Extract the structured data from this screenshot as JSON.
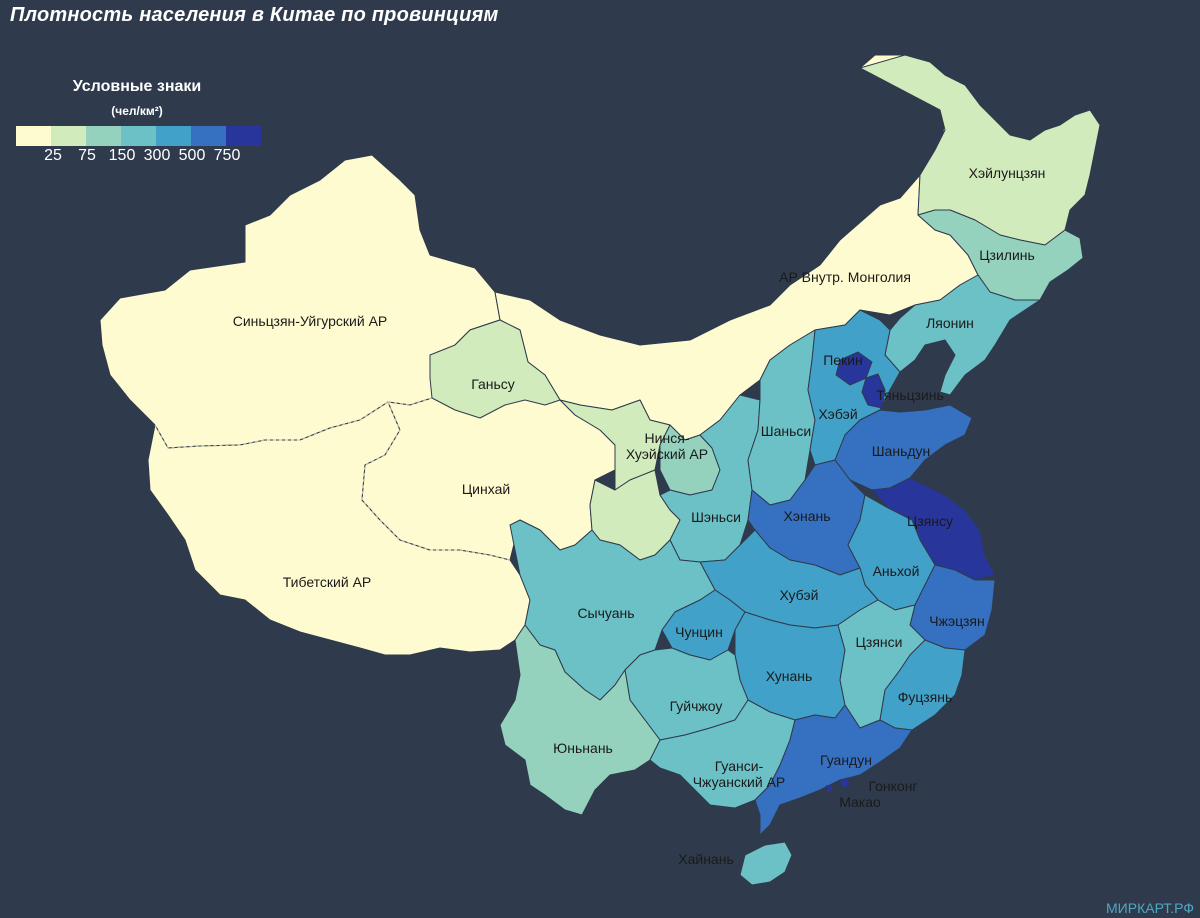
{
  "title": "Плотность населения в Китае по провинциям",
  "watermark": "МИРКАРТ.РФ",
  "legend": {
    "title": "Условные знаки",
    "unit": "(чел/км²)",
    "ticks": [
      "25",
      "75",
      "150",
      "300",
      "500",
      "750"
    ],
    "colors": [
      "#fffbd0",
      "#d2ebbc",
      "#95d2be",
      "#6cc1c7",
      "#42a1c8",
      "#3670c0",
      "#28359a"
    ]
  },
  "colors": {
    "background": "#2f3b4c",
    "border_dashed": "#c9c7a8"
  },
  "provinces": [
    {
      "id": "xinjiang",
      "name": "Синьцзян-Уйгурский АР",
      "class": 0
    },
    {
      "id": "tibet",
      "name": "Тибетский АР",
      "class": 0
    },
    {
      "id": "qinghai",
      "name": "Цинхай",
      "class": 0
    },
    {
      "id": "inner_mongolia",
      "name": "АР Внутр. Монголия",
      "class": 0
    },
    {
      "id": "gansu",
      "name": "Ганьсу",
      "class": 1
    },
    {
      "id": "ningxia",
      "name": "Нинся-Хуэйский АР",
      "class": 2
    },
    {
      "id": "heilongjiang",
      "name": "Хэйлунцзян",
      "class": 1
    },
    {
      "id": "jilin",
      "name": "Цзилинь",
      "class": 2
    },
    {
      "id": "liaoning",
      "name": "Ляонин",
      "class": 3
    },
    {
      "id": "beijing",
      "name": "Пекин",
      "class": 6
    },
    {
      "id": "tianjin",
      "name": "Тяньцзинь",
      "class": 6
    },
    {
      "id": "hebei",
      "name": "Хэбэй",
      "class": 4
    },
    {
      "id": "shanxi",
      "name": "Шаньси",
      "class": 3
    },
    {
      "id": "shaanxi",
      "name": "Шэньси",
      "class": 3
    },
    {
      "id": "shandong",
      "name": "Шаньдун",
      "class": 5
    },
    {
      "id": "henan",
      "name": "Хэнань",
      "class": 5
    },
    {
      "id": "jiangsu",
      "name": "Цзянсу",
      "class": 6
    },
    {
      "id": "anhui",
      "name": "Аньхой",
      "class": 4
    },
    {
      "id": "hubei",
      "name": "Хубэй",
      "class": 4
    },
    {
      "id": "zhejiang",
      "name": "Чжэцзян",
      "class": 5
    },
    {
      "id": "sichuan",
      "name": "Сычуань",
      "class": 3
    },
    {
      "id": "chongqing",
      "name": "Чунцин",
      "class": 4
    },
    {
      "id": "jiangxi",
      "name": "Цзянси",
      "class": 3
    },
    {
      "id": "hunan",
      "name": "Хунань",
      "class": 4
    },
    {
      "id": "fujian",
      "name": "Фуцзянь",
      "class": 4
    },
    {
      "id": "guizhou",
      "name": "Гуйчжоу",
      "class": 3
    },
    {
      "id": "yunnan",
      "name": "Юньнань",
      "class": 2
    },
    {
      "id": "guangxi",
      "name": "Гуанси-Чжуанский АР",
      "class": 3
    },
    {
      "id": "guangdong",
      "name": "Гуандун",
      "class": 5
    },
    {
      "id": "hong_kong",
      "name": "Гонконг",
      "class": 6
    },
    {
      "id": "macau",
      "name": "Макао",
      "class": 6
    },
    {
      "id": "hainan",
      "name": "Хайнань",
      "class": 3
    }
  ]
}
